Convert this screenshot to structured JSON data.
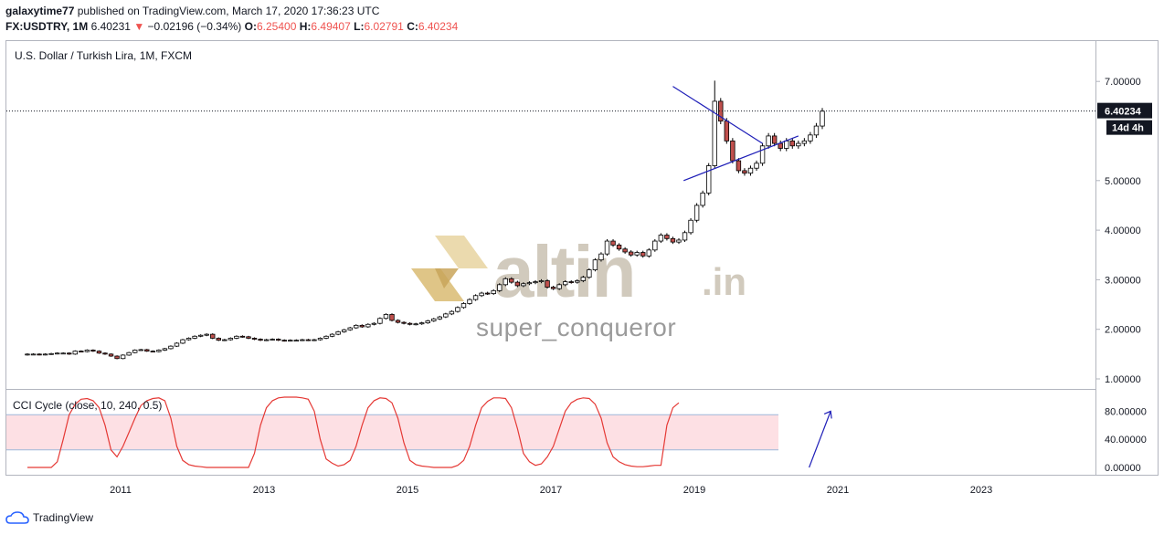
{
  "header": {
    "author": "galaxytime77",
    "published": "published on TradingView.com, March 17, 2020 17:36:23 UTC",
    "symbol": "FX:USDTRY, 1M",
    "price": "6.40231",
    "change": "−0.02196 (−0.34%)",
    "o_label": "O:",
    "o_value": "6.25400",
    "h_label": "H:",
    "h_value": "6.49407",
    "l_label": "L:",
    "l_value": "6.02791",
    "c_label": "C:",
    "c_value": "6.40234"
  },
  "chart_title": "U.S. Dollar / Turkish Lira, 1M, FXCM",
  "indicator_title": "CCI Cycle (close, 10, 240, 0.5)",
  "watermark": {
    "brand": "altin",
    "tld": ".in",
    "author": "super_conqueror"
  },
  "footer": {
    "brand": "TradingView"
  },
  "colors": {
    "up": "#ffffff",
    "down": "#c0504d",
    "line": "#000000",
    "trend": "#1f1fb8",
    "cci": "#e53935",
    "band": "#fde0e4"
  },
  "chart_data": [
    {
      "type": "candlestick",
      "title": "U.S. Dollar / Turkish Lira, 1M, FXCM",
      "x_ticks": [
        "2011",
        "2013",
        "2015",
        "2017",
        "2019",
        "2021",
        "2023"
      ],
      "y_ticks": [
        "7.00000",
        "5.00000",
        "4.00000",
        "3.00000",
        "2.00000",
        "1.00000"
      ],
      "ylim": [
        0.8,
        7.5
      ],
      "last_price_label": "6.40234",
      "countdown_label": "14d 4h",
      "close_series": [
        1.5,
        1.5,
        1.49,
        1.5,
        1.51,
        1.52,
        1.52,
        1.5,
        1.56,
        1.55,
        1.58,
        1.56,
        1.52,
        1.5,
        1.46,
        1.41,
        1.48,
        1.53,
        1.58,
        1.59,
        1.56,
        1.55,
        1.58,
        1.61,
        1.66,
        1.72,
        1.79,
        1.82,
        1.86,
        1.88,
        1.9,
        1.82,
        1.78,
        1.79,
        1.82,
        1.86,
        1.85,
        1.82,
        1.8,
        1.78,
        1.79,
        1.8,
        1.78,
        1.77,
        1.78,
        1.78,
        1.79,
        1.78,
        1.79,
        1.82,
        1.86,
        1.9,
        1.95,
        1.99,
        2.03,
        2.08,
        2.05,
        2.1,
        2.12,
        2.22,
        2.3,
        2.18,
        2.14,
        2.12,
        2.1,
        2.11,
        2.13,
        2.17,
        2.21,
        2.25,
        2.31,
        2.36,
        2.44,
        2.52,
        2.6,
        2.68,
        2.73,
        2.72,
        2.78,
        2.9,
        3.02,
        2.95,
        2.88,
        2.92,
        2.94,
        2.96,
        2.98,
        2.85,
        2.82,
        2.9,
        2.96,
        2.95,
        2.98,
        3.05,
        3.2,
        3.4,
        3.52,
        3.78,
        3.7,
        3.62,
        3.56,
        3.5,
        3.55,
        3.48,
        3.6,
        3.78,
        3.9,
        3.83,
        3.76,
        3.8,
        3.95,
        4.2,
        4.5,
        4.75,
        5.3,
        6.6,
        6.2,
        5.8,
        5.4,
        5.2,
        5.15,
        5.25,
        5.35,
        5.7,
        5.9,
        5.75,
        5.65,
        5.8,
        5.7,
        5.75,
        5.8,
        5.92,
        6.1,
        6.4
      ],
      "series": [
        {
          "name": "",
          "values": [
            1.5,
            1.5,
            1.49,
            1.5,
            1.51,
            1.52,
            1.52,
            1.5,
            1.56,
            1.55,
            1.58,
            1.56,
            1.52,
            1.5,
            1.46,
            1.41,
            1.48,
            1.53,
            1.58,
            1.59,
            1.56,
            1.55,
            1.58,
            1.61,
            1.66,
            1.72,
            1.79,
            1.82,
            1.86,
            1.88,
            1.9,
            1.82,
            1.78,
            1.79,
            1.82,
            1.86,
            1.85,
            1.82,
            1.8,
            1.78,
            1.79,
            1.8,
            1.78,
            1.77,
            1.78,
            1.78,
            1.79,
            1.78,
            1.79,
            1.82,
            1.86,
            1.9,
            1.95,
            1.99,
            2.03,
            2.08,
            2.05,
            2.1,
            2.12,
            2.22,
            2.3,
            2.18,
            2.14,
            2.12,
            2.1,
            2.11,
            2.13,
            2.17,
            2.21,
            2.25,
            2.31,
            2.36,
            2.44,
            2.52,
            2.6,
            2.68,
            2.73,
            2.72,
            2.78,
            2.9,
            3.02,
            2.95,
            2.88,
            2.92,
            2.94,
            2.96,
            2.98,
            2.85,
            2.82,
            2.9,
            2.96,
            2.95,
            2.98,
            3.05,
            3.2,
            3.4,
            3.52,
            3.78,
            3.7,
            3.62,
            3.56,
            3.5,
            3.55,
            3.48,
            3.6,
            3.78,
            3.9,
            3.83,
            3.76,
            3.8,
            3.95,
            4.2,
            4.5,
            4.75,
            5.3,
            6.6,
            6.2,
            5.8,
            5.4,
            5.2,
            5.15,
            5.25,
            5.35,
            5.7,
            5.9,
            5.75,
            5.65,
            5.8,
            5.7,
            5.75,
            5.8,
            5.92,
            6.1,
            6.4
          ]
        }
      ],
      "trendlines": [
        {
          "name": "upper",
          "from": [
            2018.7,
            6.9
          ],
          "to": [
            2019.95,
            5.75
          ]
        },
        {
          "name": "lower",
          "from": [
            2018.85,
            5.0
          ],
          "to": [
            2020.45,
            5.9
          ]
        }
      ],
      "start_year": 2009.7
    },
    {
      "type": "line",
      "title": "CCI Cycle (close, 10, 240, 0.5)",
      "y_ticks": [
        "80.00000",
        "40.00000",
        "0.00000"
      ],
      "ylim": [
        -5,
        110
      ],
      "band": [
        25,
        75
      ],
      "series": [
        {
          "name": "",
          "values": [
            0,
            0,
            0,
            0,
            0,
            8,
            40,
            75,
            90,
            97,
            98,
            95,
            85,
            60,
            25,
            15,
            30,
            50,
            70,
            88,
            95,
            98,
            99,
            95,
            70,
            30,
            10,
            4,
            2,
            1,
            0,
            0,
            0,
            0,
            0,
            0,
            0,
            0,
            20,
            60,
            85,
            95,
            99,
            100,
            100,
            100,
            99,
            97,
            80,
            40,
            12,
            6,
            2,
            4,
            10,
            30,
            60,
            85,
            95,
            99,
            98,
            92,
            70,
            35,
            10,
            4,
            2,
            1,
            0,
            0,
            0,
            0,
            3,
            10,
            30,
            60,
            85,
            94,
            99,
            99,
            98,
            85,
            55,
            20,
            8,
            3,
            5,
            15,
            30,
            55,
            80,
            92,
            97,
            99,
            98,
            90,
            70,
            35,
            15,
            8,
            4,
            2,
            1,
            1,
            2,
            3,
            3,
            60,
            85,
            92
          ]
        }
      ],
      "arrow": {
        "from": [
          2020.6,
          0
        ],
        "to": [
          2020.9,
          80
        ]
      }
    }
  ]
}
